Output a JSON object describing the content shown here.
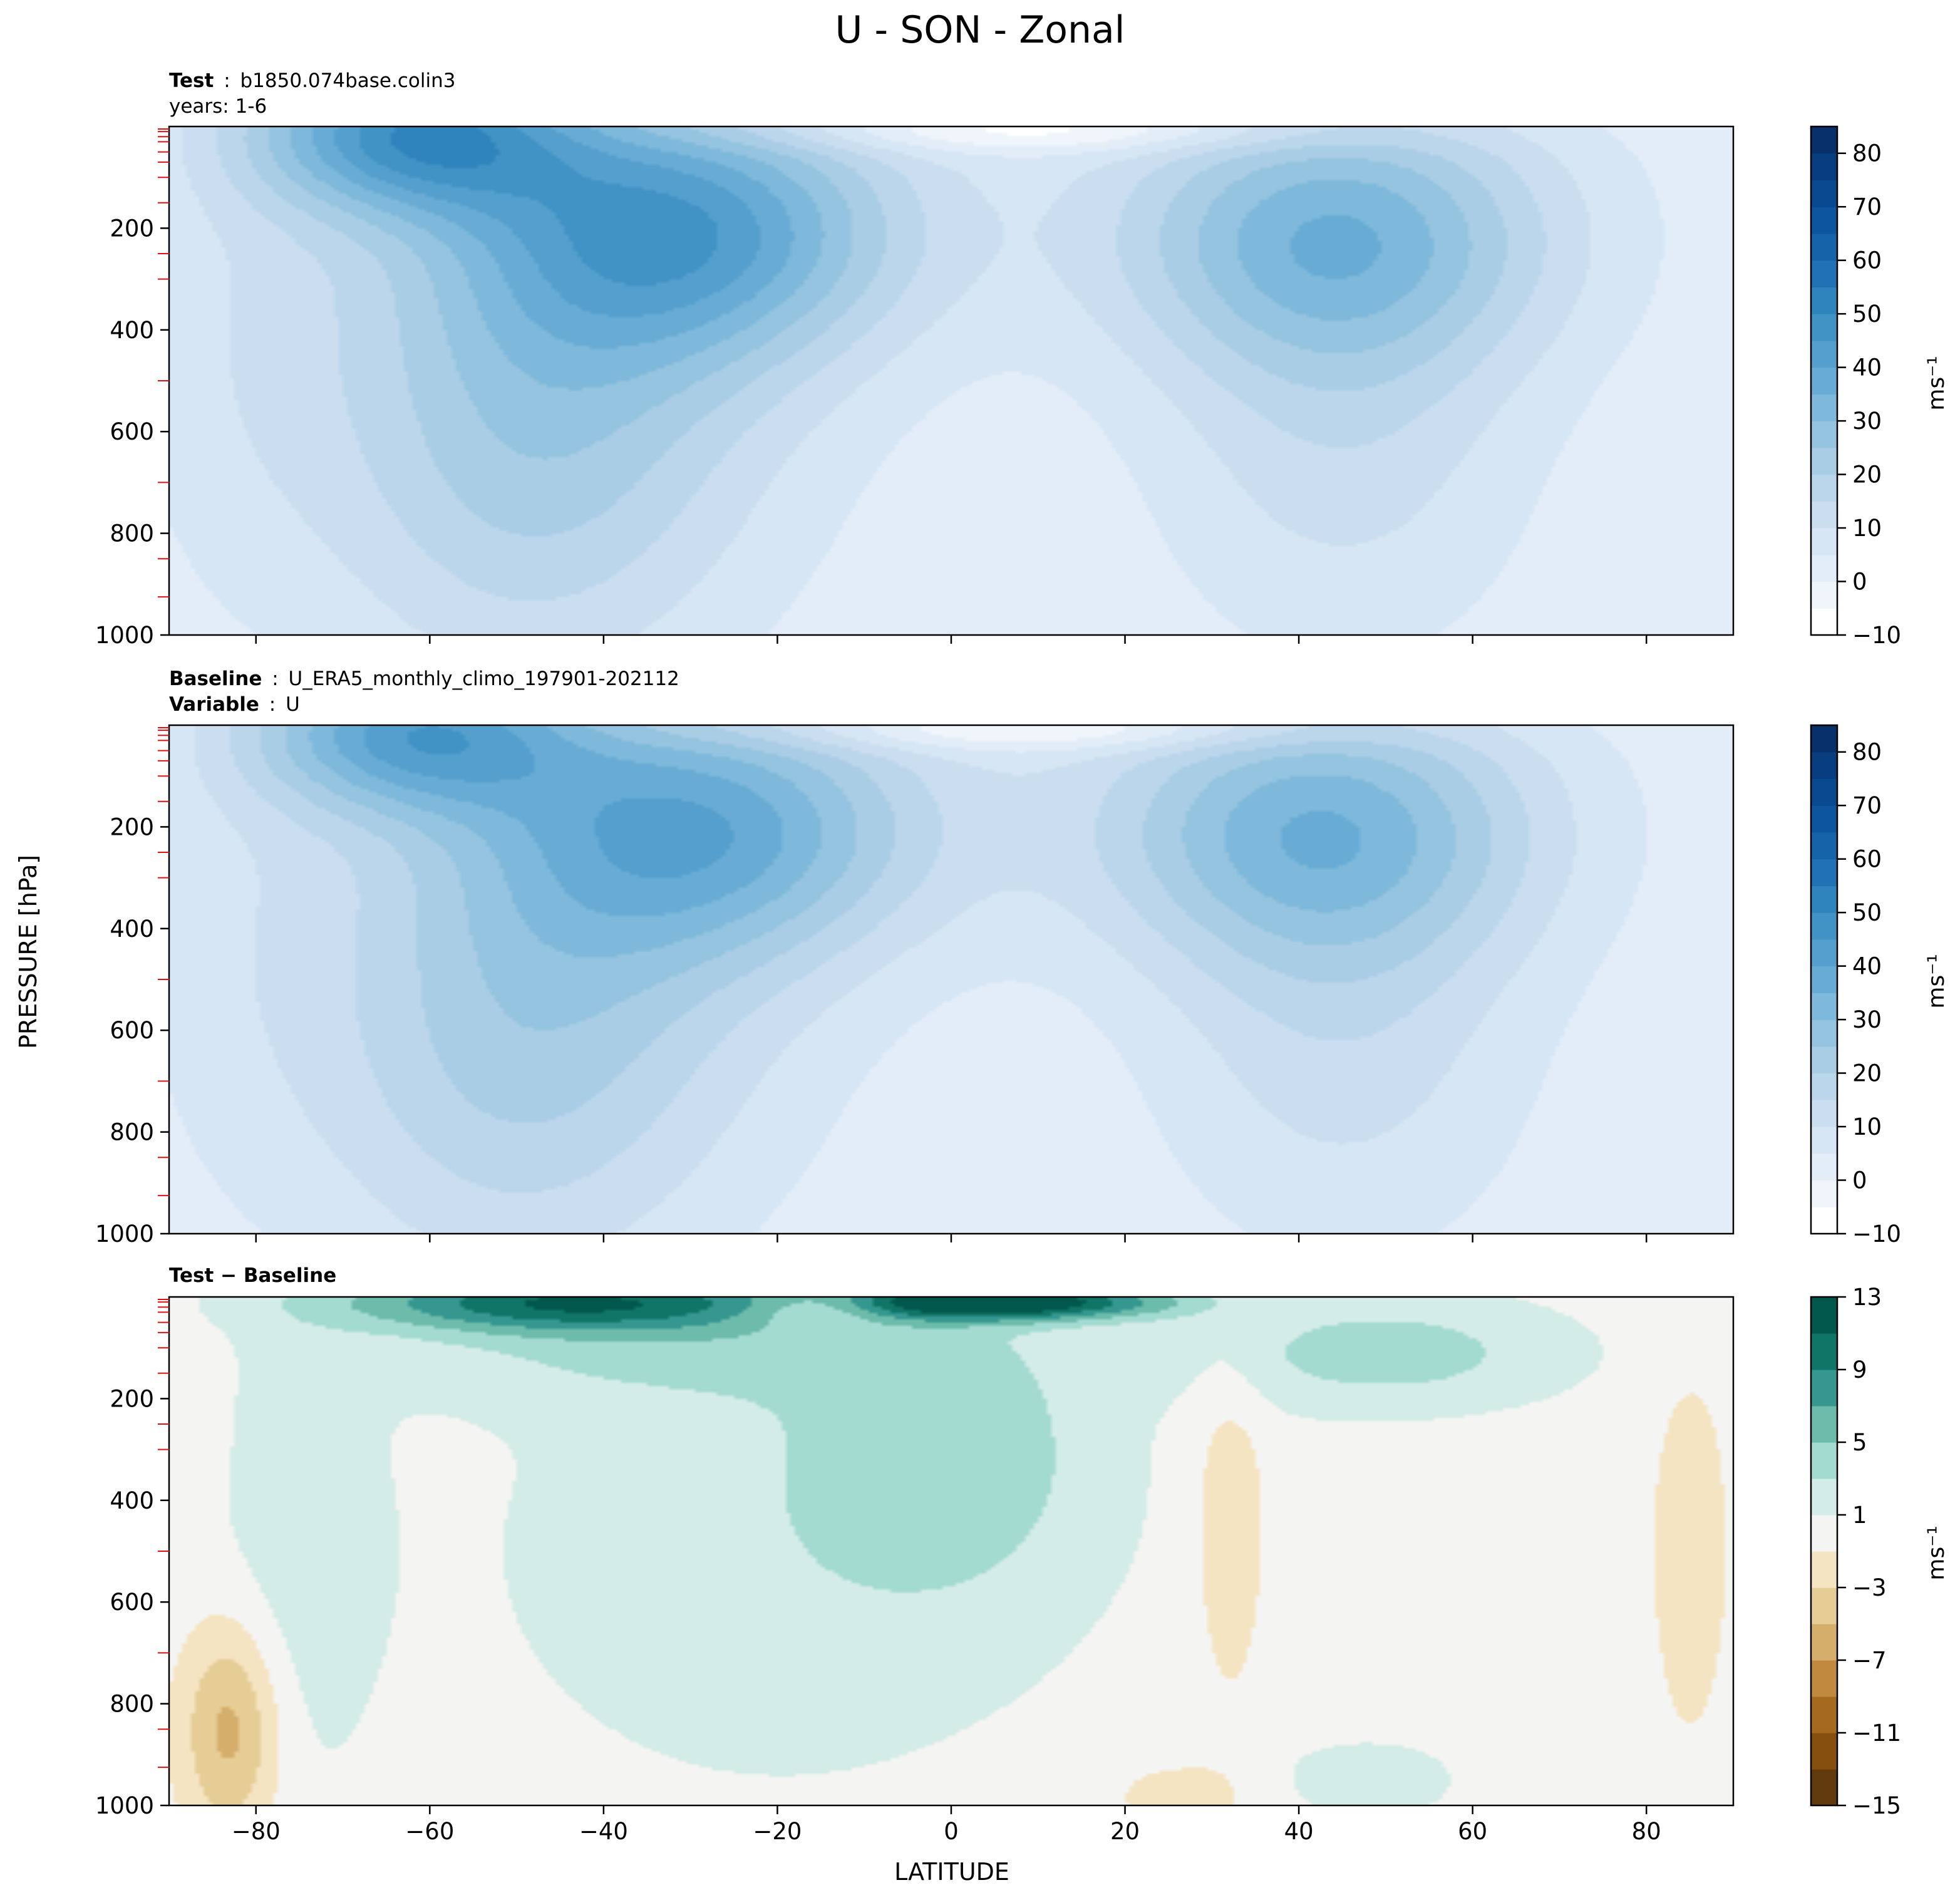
{
  "figure": {
    "title": "U - SON - Zonal",
    "ylabel": "PRESSURE [hPa]",
    "xlabel": "LATITUDE"
  },
  "panels": [
    {
      "label_bold": "Test",
      "label_sep": ":",
      "label_value": "b1850.074base.colin3",
      "label_line2": "years: 1-6",
      "cbar_unit": "ms⁻¹"
    },
    {
      "label_bold": "Baseline",
      "label_sep": ":",
      "label_value": "U_ERA5_monthly_climo_197901-202112",
      "label2_bold": "Variable",
      "label2_sep": ":",
      "label2_value": "U",
      "cbar_unit": "ms⁻¹"
    },
    {
      "label_bold": "Test − Baseline",
      "cbar_unit": "ms⁻¹"
    }
  ],
  "chart_data": [
    {
      "type": "heatmap",
      "subtype": "filled-contour",
      "panel": "Test",
      "x_axis": {
        "label": "",
        "range": [
          -90,
          90
        ],
        "ticks": [
          -80,
          -60,
          -40,
          -20,
          0,
          20,
          40,
          60,
          80
        ],
        "ticklabels_shown": false
      },
      "y_axis": {
        "label": "PRESSURE [hPa]",
        "range": [
          1000,
          0
        ],
        "inverted": true,
        "ticks": [
          200,
          400,
          600,
          800,
          1000
        ]
      },
      "colorbar": {
        "label": "ms⁻¹",
        "levels": [
          -10,
          -5,
          0,
          5,
          10,
          15,
          20,
          25,
          30,
          35,
          40,
          45,
          50,
          55,
          60,
          65,
          70,
          75,
          80,
          85
        ],
        "ticks": [
          -10,
          0,
          10,
          20,
          30,
          40,
          50,
          60,
          70,
          80
        ],
        "colors": [
          "#ffffff",
          "#f0f5fb",
          "#e3edf8",
          "#d6e6f4",
          "#cadef0",
          "#bbd6eb",
          "#a9cde5",
          "#94c4df",
          "#7eb8da",
          "#68acd5",
          "#549fcd",
          "#4192c5",
          "#2f84bd",
          "#2171b5",
          "#1663aa",
          "#0d559e",
          "#084990",
          "#083d7f",
          "#08306b"
        ]
      },
      "features": [
        {
          "name": "southern jet core",
          "lat": -30,
          "pressure": 200,
          "value": 40
        },
        {
          "name": "southern stratospheric jet",
          "lat": -60,
          "pressure": 20,
          "value": 50
        },
        {
          "name": "northern jet core",
          "lat": 45,
          "pressure": 200,
          "value": 35
        },
        {
          "name": "tropical minimum",
          "lat": 2,
          "pressure": 400,
          "value": 2
        }
      ]
    },
    {
      "type": "heatmap",
      "subtype": "filled-contour",
      "panel": "Baseline",
      "x_axis": {
        "label": "",
        "range": [
          -90,
          90
        ],
        "ticks": [
          -80,
          -60,
          -40,
          -20,
          0,
          20,
          40,
          60,
          80
        ],
        "ticklabels_shown": false
      },
      "y_axis": {
        "label": "PRESSURE [hPa]",
        "range": [
          1000,
          0
        ],
        "inverted": true,
        "ticks": [
          200,
          400,
          600,
          800,
          1000
        ]
      },
      "colorbar": {
        "label": "ms⁻¹",
        "levels": [
          -10,
          -5,
          0,
          5,
          10,
          15,
          20,
          25,
          30,
          35,
          40,
          45,
          50,
          55,
          60,
          65,
          70,
          75,
          80,
          85
        ],
        "ticks": [
          -10,
          0,
          10,
          20,
          30,
          40,
          50,
          60,
          70,
          80
        ],
        "colors": [
          "#ffffff",
          "#f0f5fb",
          "#e3edf8",
          "#d6e6f4",
          "#cadef0",
          "#bbd6eb",
          "#a9cde5",
          "#94c4df",
          "#7eb8da",
          "#68acd5",
          "#549fcd",
          "#4192c5",
          "#2f84bd",
          "#2171b5",
          "#1663aa",
          "#0d559e",
          "#084990",
          "#083d7f",
          "#08306b"
        ]
      },
      "features": [
        {
          "name": "southern jet core",
          "lat": -27,
          "pressure": 200,
          "value": 35
        },
        {
          "name": "southern stratospheric jet",
          "lat": -60,
          "pressure": 25,
          "value": 45
        },
        {
          "name": "northern jet core",
          "lat": 42,
          "pressure": 200,
          "value": 35
        },
        {
          "name": "tropical minimum",
          "lat": 0,
          "pressure": 500,
          "value": 2
        }
      ]
    },
    {
      "type": "heatmap",
      "subtype": "filled-contour",
      "panel": "Test − Baseline",
      "x_axis": {
        "label": "LATITUDE",
        "range": [
          -90,
          90
        ],
        "ticks": [
          -80,
          -60,
          -40,
          -20,
          0,
          20,
          40,
          60,
          80
        ]
      },
      "y_axis": {
        "label": "PRESSURE [hPa]",
        "range": [
          1000,
          0
        ],
        "inverted": true,
        "ticks": [
          200,
          400,
          600,
          800,
          1000
        ]
      },
      "colorbar": {
        "label": "ms⁻¹",
        "levels": [
          -15,
          -13,
          -11,
          -9,
          -7,
          -5,
          -3,
          -1,
          1,
          3,
          5,
          7,
          9,
          11,
          13
        ],
        "ticks": [
          -15,
          -11,
          -7,
          -3,
          1,
          5,
          9,
          13
        ],
        "colors": [
          "#613a0d",
          "#85500f",
          "#a66a1f",
          "#c1883f",
          "#d6ae6b",
          "#e6cd96",
          "#f4e4c1",
          "#f4f4f2",
          "#d3ece7",
          "#a4dbd1",
          "#6cbbab",
          "#35978f",
          "#107466",
          "#01574b"
        ]
      },
      "features": [
        {
          "name": "stratospheric positive band",
          "lat": -45,
          "pressure": 10,
          "value": 11
        },
        {
          "name": "equatorial stratospheric max",
          "lat": 5,
          "pressure": 10,
          "value": 13
        },
        {
          "name": "tropical tropospheric positive",
          "lat": 0,
          "pressure": 300,
          "value": 4
        },
        {
          "name": "northern positive",
          "lat": 50,
          "pressure": 100,
          "value": 4
        },
        {
          "name": "negative near 30N",
          "lat": 32,
          "pressure": 400,
          "value": -2
        },
        {
          "name": "negative near 85N",
          "lat": 85,
          "pressure": 500,
          "value": -2
        },
        {
          "name": "negative near Antarctica",
          "lat": -83,
          "pressure": 850,
          "value": -6
        }
      ]
    }
  ]
}
